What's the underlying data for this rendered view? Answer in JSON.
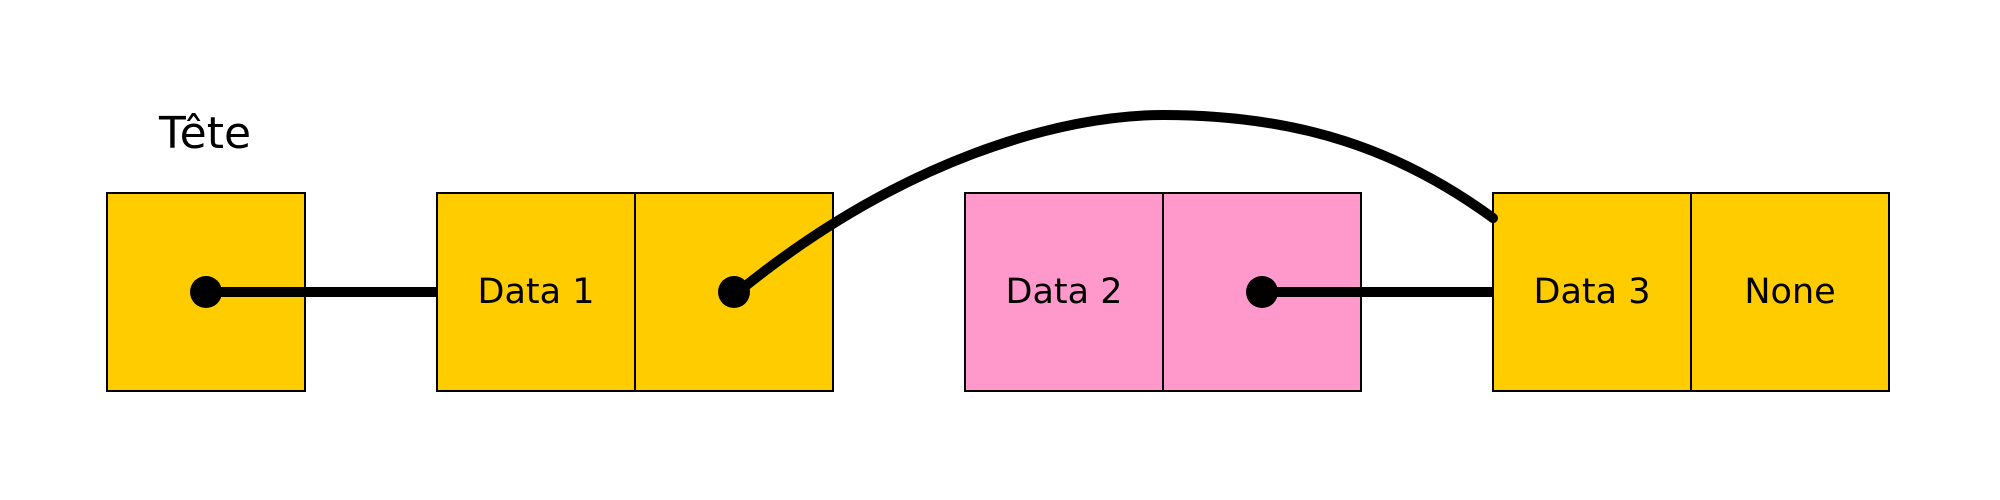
{
  "head": {
    "label": "Tête"
  },
  "nodes": [
    {
      "data": "Data 1",
      "next": ""
    },
    {
      "data": "Data 2",
      "next": ""
    },
    {
      "data": "Data 3",
      "next": "None"
    }
  ],
  "colors": {
    "active_node": "#ffcc00",
    "removed_node": "#ff99cc",
    "stroke": "#000000",
    "background": "#ffffff"
  }
}
